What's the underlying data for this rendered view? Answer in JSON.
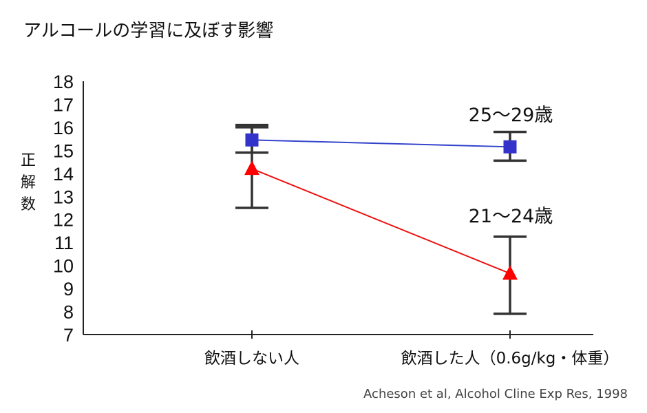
{
  "chart_data": {
    "type": "line",
    "title": "アルコールの学習に及ぼす影響",
    "ylabel_chars": [
      "正",
      "解",
      "数"
    ],
    "categories": [
      "飲酒しない人",
      "飲酒した人（0.6g/kg・体重）"
    ],
    "ylim": [
      7,
      18
    ],
    "yticks": [
      7,
      8,
      9,
      10,
      11,
      12,
      13,
      14,
      15,
      16,
      17,
      18
    ],
    "grid": false,
    "series": [
      {
        "name": "25〜29歳",
        "marker": "square",
        "color": "#3333cc",
        "line_color": "#3344cc",
        "values": [
          15.45,
          15.15
        ],
        "error_upper": [
          16.1,
          15.8
        ],
        "error_lower": [
          14.9,
          14.55
        ]
      },
      {
        "name": "21〜24歳",
        "marker": "triangle",
        "color": "#ff0000",
        "line_color": "#ee1111",
        "values": [
          14.2,
          9.65
        ],
        "error_upper": [
          16.0,
          11.25
        ],
        "error_lower": [
          12.5,
          7.9
        ]
      }
    ],
    "error_bar_color": "#333333"
  },
  "source": "Acheson et al, Alcohol Cline Exp Res, 1998"
}
